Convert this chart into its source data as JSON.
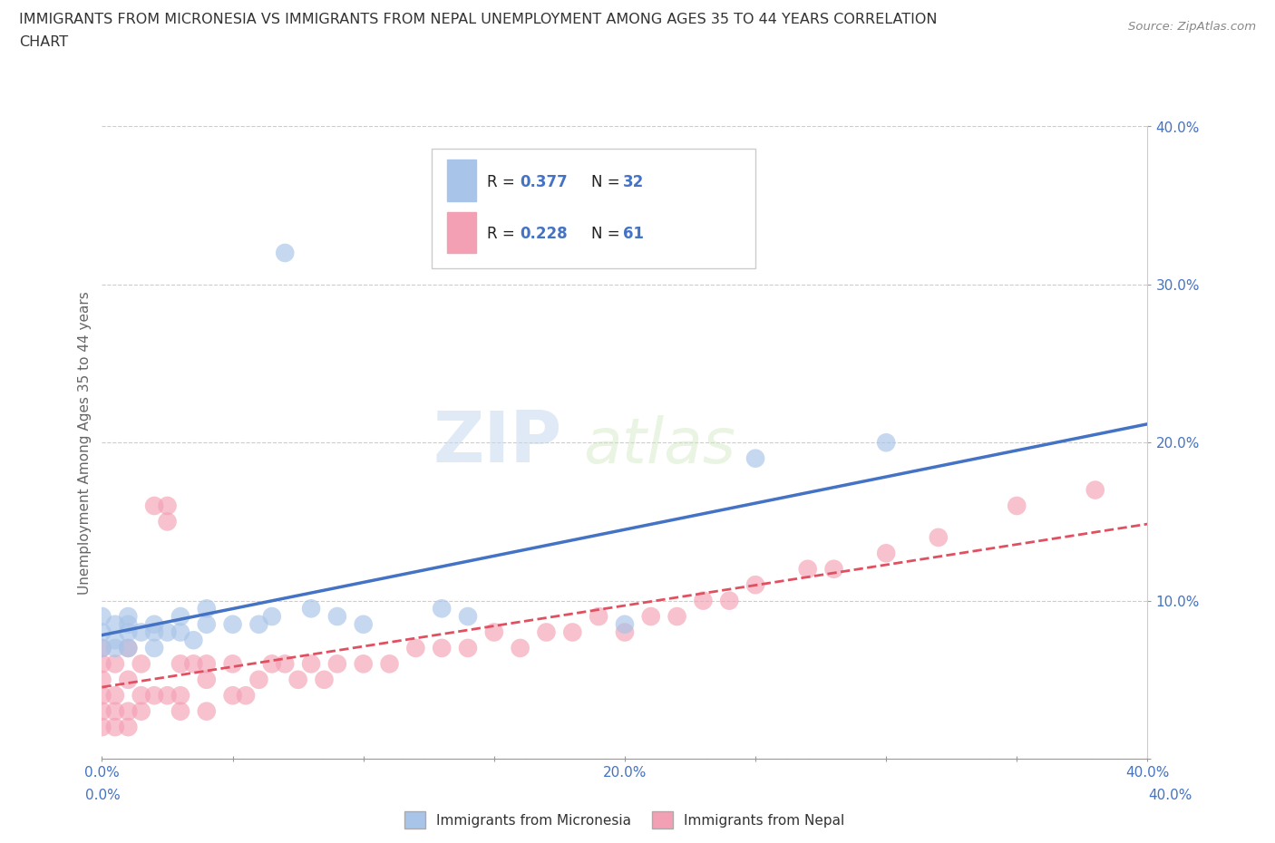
{
  "title_line1": "IMMIGRANTS FROM MICRONESIA VS IMMIGRANTS FROM NEPAL UNEMPLOYMENT AMONG AGES 35 TO 44 YEARS CORRELATION",
  "title_line2": "CHART",
  "source": "Source: ZipAtlas.com",
  "ylabel": "Unemployment Among Ages 35 to 44 years",
  "xlim": [
    0.0,
    0.4
  ],
  "ylim": [
    0.0,
    0.4
  ],
  "xticks": [
    0.0,
    0.05,
    0.1,
    0.15,
    0.2,
    0.25,
    0.3,
    0.35,
    0.4
  ],
  "yticks": [
    0.0,
    0.1,
    0.2,
    0.3,
    0.4
  ],
  "xticklabels": [
    "0.0%",
    "",
    "",
    "",
    "20.0%",
    "",
    "",
    "",
    "40.0%"
  ],
  "yticklabels": [
    "",
    "10.0%",
    "20.0%",
    "30.0%",
    "40.0%"
  ],
  "micronesia_color": "#a8c4e8",
  "nepal_color": "#f4a0b4",
  "micronesia_line_color": "#4472c4",
  "nepal_line_color": "#e05060",
  "R_micronesia": 0.377,
  "N_micronesia": 32,
  "R_nepal": 0.228,
  "N_nepal": 61,
  "legend_labels": [
    "Immigrants from Micronesia",
    "Immigrants from Nepal"
  ],
  "watermark_zip": "ZIP",
  "watermark_atlas": "atlas",
  "mic_x": [
    0.0,
    0.0,
    0.0,
    0.005,
    0.005,
    0.01,
    0.01,
    0.01,
    0.015,
    0.02,
    0.02,
    0.025,
    0.03,
    0.03,
    0.035,
    0.04,
    0.05,
    0.065,
    0.07,
    0.09,
    0.1,
    0.13,
    0.14,
    0.2,
    0.25,
    0.3,
    0.005,
    0.01,
    0.02,
    0.04,
    0.06,
    0.08
  ],
  "mic_y": [
    0.07,
    0.08,
    0.09,
    0.07,
    0.085,
    0.07,
    0.08,
    0.085,
    0.08,
    0.07,
    0.08,
    0.08,
    0.08,
    0.09,
    0.075,
    0.085,
    0.085,
    0.09,
    0.32,
    0.09,
    0.085,
    0.095,
    0.09,
    0.085,
    0.19,
    0.2,
    0.075,
    0.09,
    0.085,
    0.095,
    0.085,
    0.095
  ],
  "nep_x": [
    0.0,
    0.0,
    0.0,
    0.0,
    0.0,
    0.0,
    0.005,
    0.005,
    0.005,
    0.005,
    0.01,
    0.01,
    0.01,
    0.01,
    0.015,
    0.015,
    0.015,
    0.02,
    0.02,
    0.025,
    0.025,
    0.03,
    0.03,
    0.03,
    0.035,
    0.04,
    0.04,
    0.05,
    0.05,
    0.055,
    0.06,
    0.065,
    0.07,
    0.075,
    0.08,
    0.085,
    0.09,
    0.1,
    0.11,
    0.12,
    0.13,
    0.14,
    0.15,
    0.16,
    0.17,
    0.18,
    0.19,
    0.2,
    0.21,
    0.22,
    0.23,
    0.24,
    0.25,
    0.27,
    0.28,
    0.3,
    0.32,
    0.35,
    0.38,
    0.025,
    0.04
  ],
  "nep_y": [
    0.02,
    0.03,
    0.04,
    0.05,
    0.06,
    0.07,
    0.02,
    0.03,
    0.04,
    0.06,
    0.02,
    0.03,
    0.05,
    0.07,
    0.03,
    0.04,
    0.06,
    0.04,
    0.16,
    0.04,
    0.15,
    0.03,
    0.04,
    0.06,
    0.06,
    0.03,
    0.06,
    0.04,
    0.06,
    0.04,
    0.05,
    0.06,
    0.06,
    0.05,
    0.06,
    0.05,
    0.06,
    0.06,
    0.06,
    0.07,
    0.07,
    0.07,
    0.08,
    0.07,
    0.08,
    0.08,
    0.09,
    0.08,
    0.09,
    0.09,
    0.1,
    0.1,
    0.11,
    0.12,
    0.12,
    0.13,
    0.14,
    0.16,
    0.17,
    0.16,
    0.05
  ]
}
